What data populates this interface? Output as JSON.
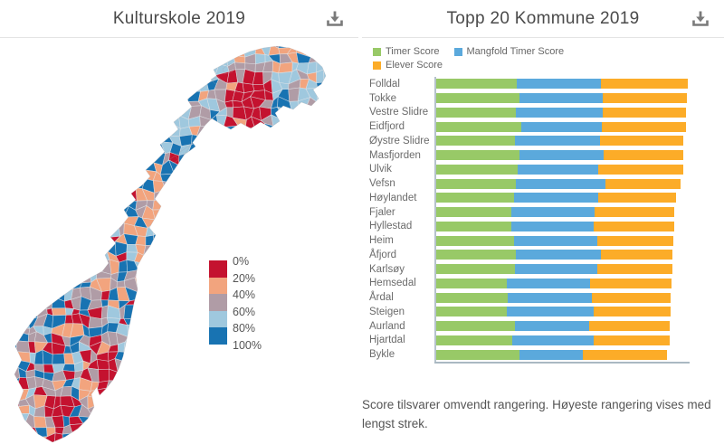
{
  "left_panel": {
    "title": "Kulturskole 2019",
    "download_icon": "download-icon"
  },
  "right_panel": {
    "title": "Topp 20 Kommune 2019",
    "download_icon": "download-icon",
    "footnote": "Score tilsvarer omvendt rangering. Høyeste rangering vises med lengst strek."
  },
  "map": {
    "title": "Kulturskole 2019",
    "type": "choropleth",
    "legend_labels": [
      "0%",
      "20%",
      "40%",
      "60%",
      "80%",
      "100%"
    ],
    "palette_order": [
      "red",
      "peach",
      "mauve",
      "lightblue",
      "blue"
    ],
    "palette": {
      "red": "#C4122F",
      "peach": "#F2A47E",
      "mauve": "#B09CA6",
      "lightblue": "#9FC8DE",
      "blue": "#1873B2"
    }
  },
  "chart_data": {
    "type": "bar",
    "orientation": "horizontal",
    "title": "Topp 20 Kommune 2019",
    "xlim": [
      0,
      100
    ],
    "grid": false,
    "legend_position": "top-left",
    "categories": [
      "Folldal",
      "Tokke",
      "Vestre Slidre",
      "Eidfjord",
      "Øystre Slidre",
      "Masfjorden",
      "Ulvik",
      "Vefsn",
      "Høylandet",
      "Fjaler",
      "Hyllestad",
      "Heim",
      "Åfjord",
      "Karlsøy",
      "Hemsedal",
      "Årdal",
      "Steigen",
      "Aurland",
      "Hjartdal",
      "Bykle"
    ],
    "series": [
      {
        "name": "Timer Score",
        "color": "#98C967",
        "values": [
          32.1,
          33.0,
          31.9,
          33.7,
          31.3,
          33.3,
          32.4,
          31.8,
          31.0,
          30.0,
          30.1,
          31.0,
          31.8,
          31.3,
          28.2,
          28.6,
          28.2,
          31.5,
          30.4,
          33.3
        ]
      },
      {
        "name": "Mangfold Timer Score",
        "color": "#5BA9DC",
        "values": [
          33.4,
          33.1,
          34.2,
          32.0,
          33.9,
          33.2,
          32.1,
          35.5,
          33.3,
          32.9,
          32.6,
          33.0,
          33.7,
          32.7,
          32.8,
          33.3,
          34.5,
          29.4,
          32.1,
          25.0
        ]
      },
      {
        "name": "Elever Score",
        "color": "#FCAC28",
        "values": [
          34.3,
          33.4,
          33.0,
          33.3,
          33.0,
          31.5,
          33.4,
          29.5,
          30.9,
          31.5,
          31.6,
          30.0,
          28.3,
          29.6,
          32.2,
          31.2,
          30.2,
          31.9,
          30.1,
          33.4
        ]
      }
    ]
  }
}
